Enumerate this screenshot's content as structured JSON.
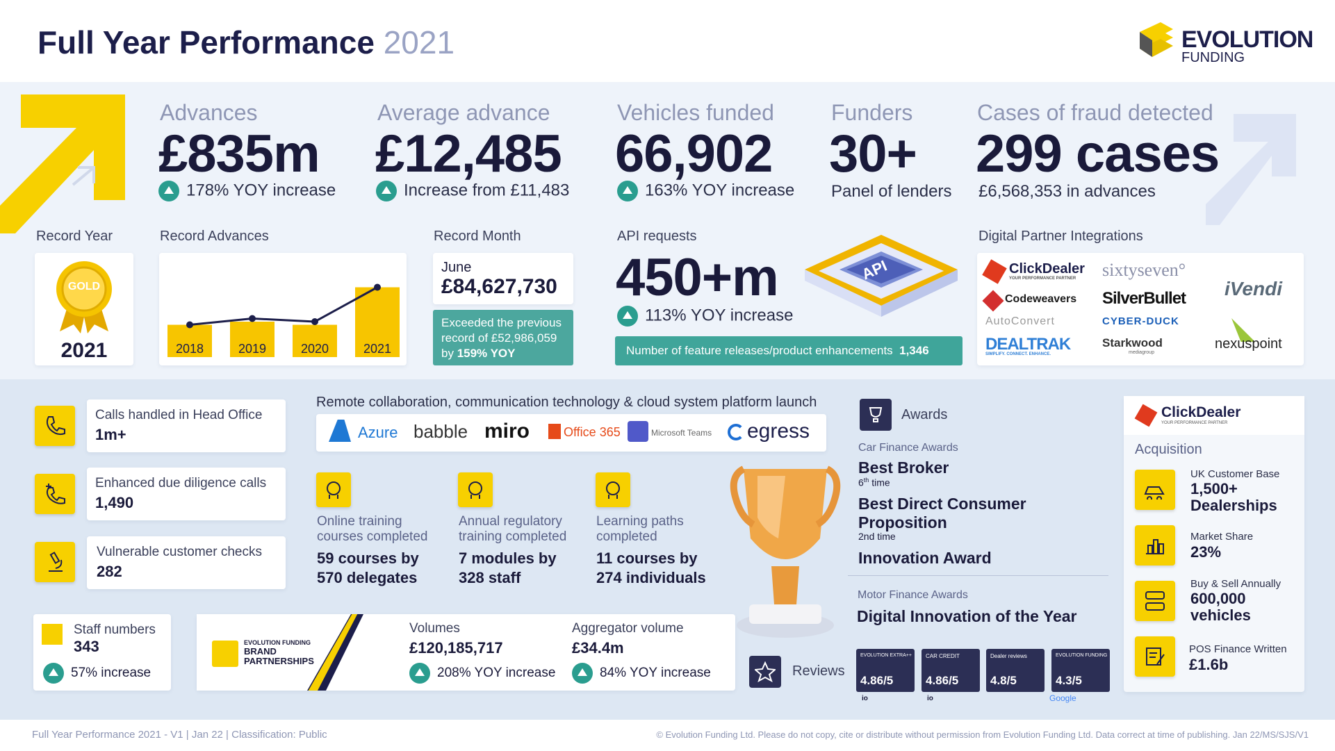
{
  "header": {
    "title": "Full Year Performance",
    "year": "2021",
    "brand_top": "EVOLUTION",
    "brand_bottom": "FUNDING"
  },
  "stats": {
    "advances": {
      "title": "Advances",
      "value": "£835m",
      "sub": "178% YOY increase"
    },
    "average": {
      "title": "Average advance",
      "value": "£12,485",
      "sub": "Increase from £11,483"
    },
    "vehicles": {
      "title": "Vehicles funded",
      "value": "66,902",
      "sub": "163% YOY increase"
    },
    "funders": {
      "title": "Funders",
      "value": "30+",
      "sub": "Panel of lenders"
    },
    "fraud": {
      "title": "Cases of fraud detected",
      "value": "299 cases",
      "sub": "£6,568,353 in advances"
    }
  },
  "record_year": {
    "label": "Record Year",
    "medal": "GOLD",
    "year": "2021"
  },
  "record_advances": {
    "label": "Record Advances"
  },
  "chart_data": {
    "type": "bar",
    "categories": [
      "2018",
      "2019",
      "2020",
      "2021"
    ],
    "values": [
      0.31,
      0.34,
      0.31,
      0.67
    ],
    "line": [
      0.31,
      0.37,
      0.34,
      0.67
    ]
  },
  "record_month": {
    "label": "Record Month",
    "month": "June",
    "value": "£84,627,730",
    "note_pre": "Exceeded the previous record of £52,986,059 by ",
    "note_bold": "159% YOY"
  },
  "api": {
    "label": "API requests",
    "value": "450+m",
    "sub": "113% YOY increase",
    "chip": "API",
    "bar_text": "Number of feature releases/product enhancements",
    "bar_value": "1,346"
  },
  "partners": {
    "label": "Digital Partner Integrations",
    "items": [
      "ClickDealer",
      "YOUR PERFORMANCE PARTNER",
      "sixtyseven°",
      "iVendi",
      "Codeweavers",
      "SilverBullet",
      "AutoConvert",
      "CYBER-DUCK",
      "DEALTRAK",
      "SIMPLIFY. CONNECT. ENHANCE.",
      "Starkwood",
      "mediagroup",
      "nexuspoint"
    ]
  },
  "calls": [
    {
      "label": "Calls handled in Head Office",
      "value": "1m+"
    },
    {
      "label": "Enhanced due diligence calls",
      "value": "1,490"
    },
    {
      "label": "Vulnerable customer checks",
      "value": "282"
    }
  ],
  "staff": {
    "label": "Staff numbers",
    "value": "343",
    "sub": "57% increase"
  },
  "remote": {
    "title": "Remote collaboration, communication technology & cloud system platform launch",
    "logos": [
      "Azure",
      "babble",
      "miro",
      "Office 365",
      "Microsoft Teams",
      "egress"
    ]
  },
  "training": [
    {
      "label": "Online training courses completed",
      "value": "59 courses by 570 delegates"
    },
    {
      "label": "Annual regulatory training completed",
      "value": "7 modules by 328 staff"
    },
    {
      "label": "Learning paths completed",
      "value": "11 courses by 274 individuals"
    }
  ],
  "brand_partnerships": {
    "line1": "EVOLUTION FUNDING",
    "line2": "BRAND",
    "line3": "PARTNERSHIPS",
    "vol_label": "Volumes",
    "vol_value": "£120,185,717",
    "vol_sub": "208% YOY increase",
    "agg_label": "Aggregator volume",
    "agg_value": "£34.4m",
    "agg_sub": "84% YOY increase"
  },
  "awards": {
    "label": "Awards",
    "car_label": "Car Finance Awards",
    "a1": "Best Broker",
    "a1_sup": "th",
    "a1_n": "6",
    "a1_sub": " time",
    "a2": "Best Direct Consumer Proposition",
    "a2_sub": "2nd time",
    "a3": "Innovation Award",
    "motor_label": "Motor Finance Awards",
    "a4": "Digital Innovation of the Year"
  },
  "reviews": {
    "label": "Reviews",
    "items": [
      {
        "brand": "EVOLUTION EXTRA++",
        "score": "4.86/5",
        "source": "io"
      },
      {
        "brand": "CAR CREDIT",
        "score": "4.86/5",
        "source": "io"
      },
      {
        "brand": "Dealer reviews",
        "score": "4.8/5",
        "source": ""
      },
      {
        "brand": "EVOLUTION FUNDING",
        "score": "4.3/5",
        "source": "Google"
      }
    ]
  },
  "clickdealer": {
    "brand": "ClickDealer",
    "tag": "YOUR PERFORMANCE PARTNER",
    "acq": "Acquisition",
    "items": [
      {
        "label": "UK Customer Base",
        "value": "1,500+ Dealerships"
      },
      {
        "label": "Market Share",
        "value": "23%"
      },
      {
        "label": "Buy & Sell Annually",
        "value": "600,000 vehicles"
      },
      {
        "label": "POS Finance Written",
        "value": "£1.6b"
      }
    ]
  },
  "footer": {
    "left": "Full Year Performance 2021 - V1 | Jan 22 | Classification: Public",
    "right": "© Evolution Funding Ltd. Please do not copy, cite or distribute without permission from Evolution Funding Ltd. Data correct at time of publishing. Jan 22/MS/SJS/V1"
  },
  "colors": {
    "navy": "#1c1e4a",
    "yellow": "#f7d000",
    "teal": "#2a9d8f",
    "band1": "#eef3fa",
    "band2": "#dfe8f4"
  }
}
